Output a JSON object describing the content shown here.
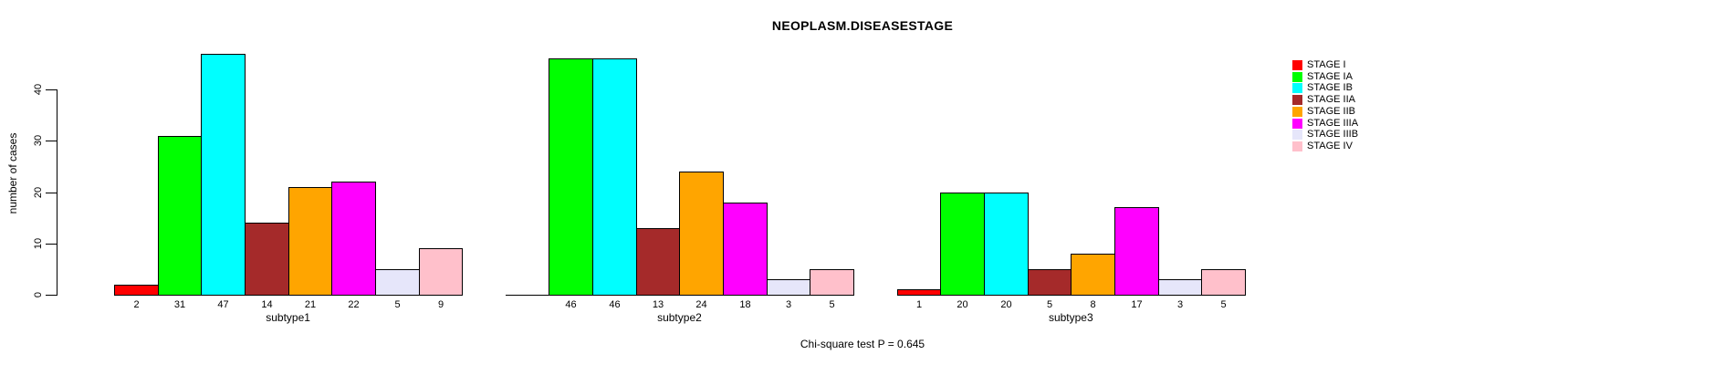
{
  "chart_data": {
    "type": "bar",
    "title": "NEOPLASM.DISEASESTAGE",
    "ylabel": "number of cases",
    "xlabel": "",
    "yticks": [
      0,
      10,
      20,
      30,
      40
    ],
    "ylim": [
      0,
      47
    ],
    "grid": false,
    "legend_position": "right",
    "categories": [
      "subtype1",
      "subtype2",
      "subtype3"
    ],
    "series": [
      {
        "name": "STAGE I",
        "color": "#FF0000",
        "values": [
          2,
          0,
          1
        ]
      },
      {
        "name": "STAGE IA",
        "color": "#00FF00",
        "values": [
          31,
          46,
          20
        ]
      },
      {
        "name": "STAGE IB",
        "color": "#00FFFF",
        "values": [
          47,
          46,
          20
        ]
      },
      {
        "name": "STAGE IIA",
        "color": "#A52A2A",
        "values": [
          14,
          13,
          5
        ]
      },
      {
        "name": "STAGE IIB",
        "color": "#FFA500",
        "values": [
          21,
          24,
          8
        ]
      },
      {
        "name": "STAGE IIIA",
        "color": "#FF00FF",
        "values": [
          22,
          18,
          17
        ]
      },
      {
        "name": "STAGE IIIB",
        "color": "#E6E6FA",
        "values": [
          5,
          3,
          3
        ]
      },
      {
        "name": "STAGE IV",
        "color": "#FFC0CB",
        "values": [
          9,
          5,
          5
        ]
      }
    ],
    "bar_value_labels_shown": true,
    "zero_value_labels_hidden": true,
    "annotation": "Chi-square test P = 0.645"
  },
  "colors": {
    "axis": "#000000",
    "bar_border": "#000000",
    "background": "#FFFFFF"
  }
}
